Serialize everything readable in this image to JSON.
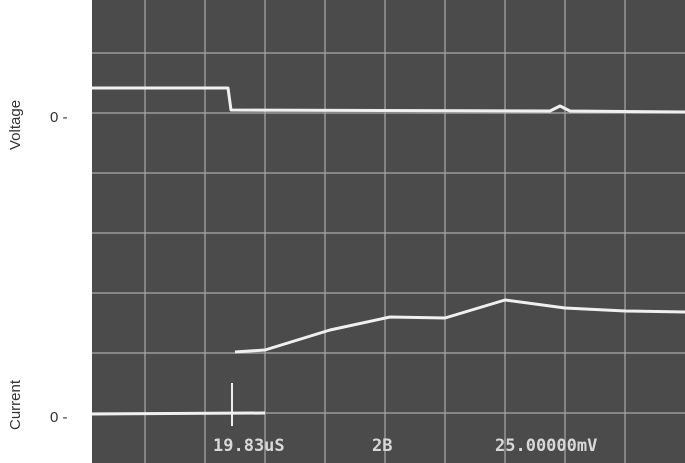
{
  "labels": {
    "voltage": "Voltage",
    "voltage_zero": "0 -",
    "current": "Current",
    "current_zero": "0 -"
  },
  "readout": {
    "time": "19.83uS",
    "channel": "2B",
    "scale": "25.00000mV"
  }
}
